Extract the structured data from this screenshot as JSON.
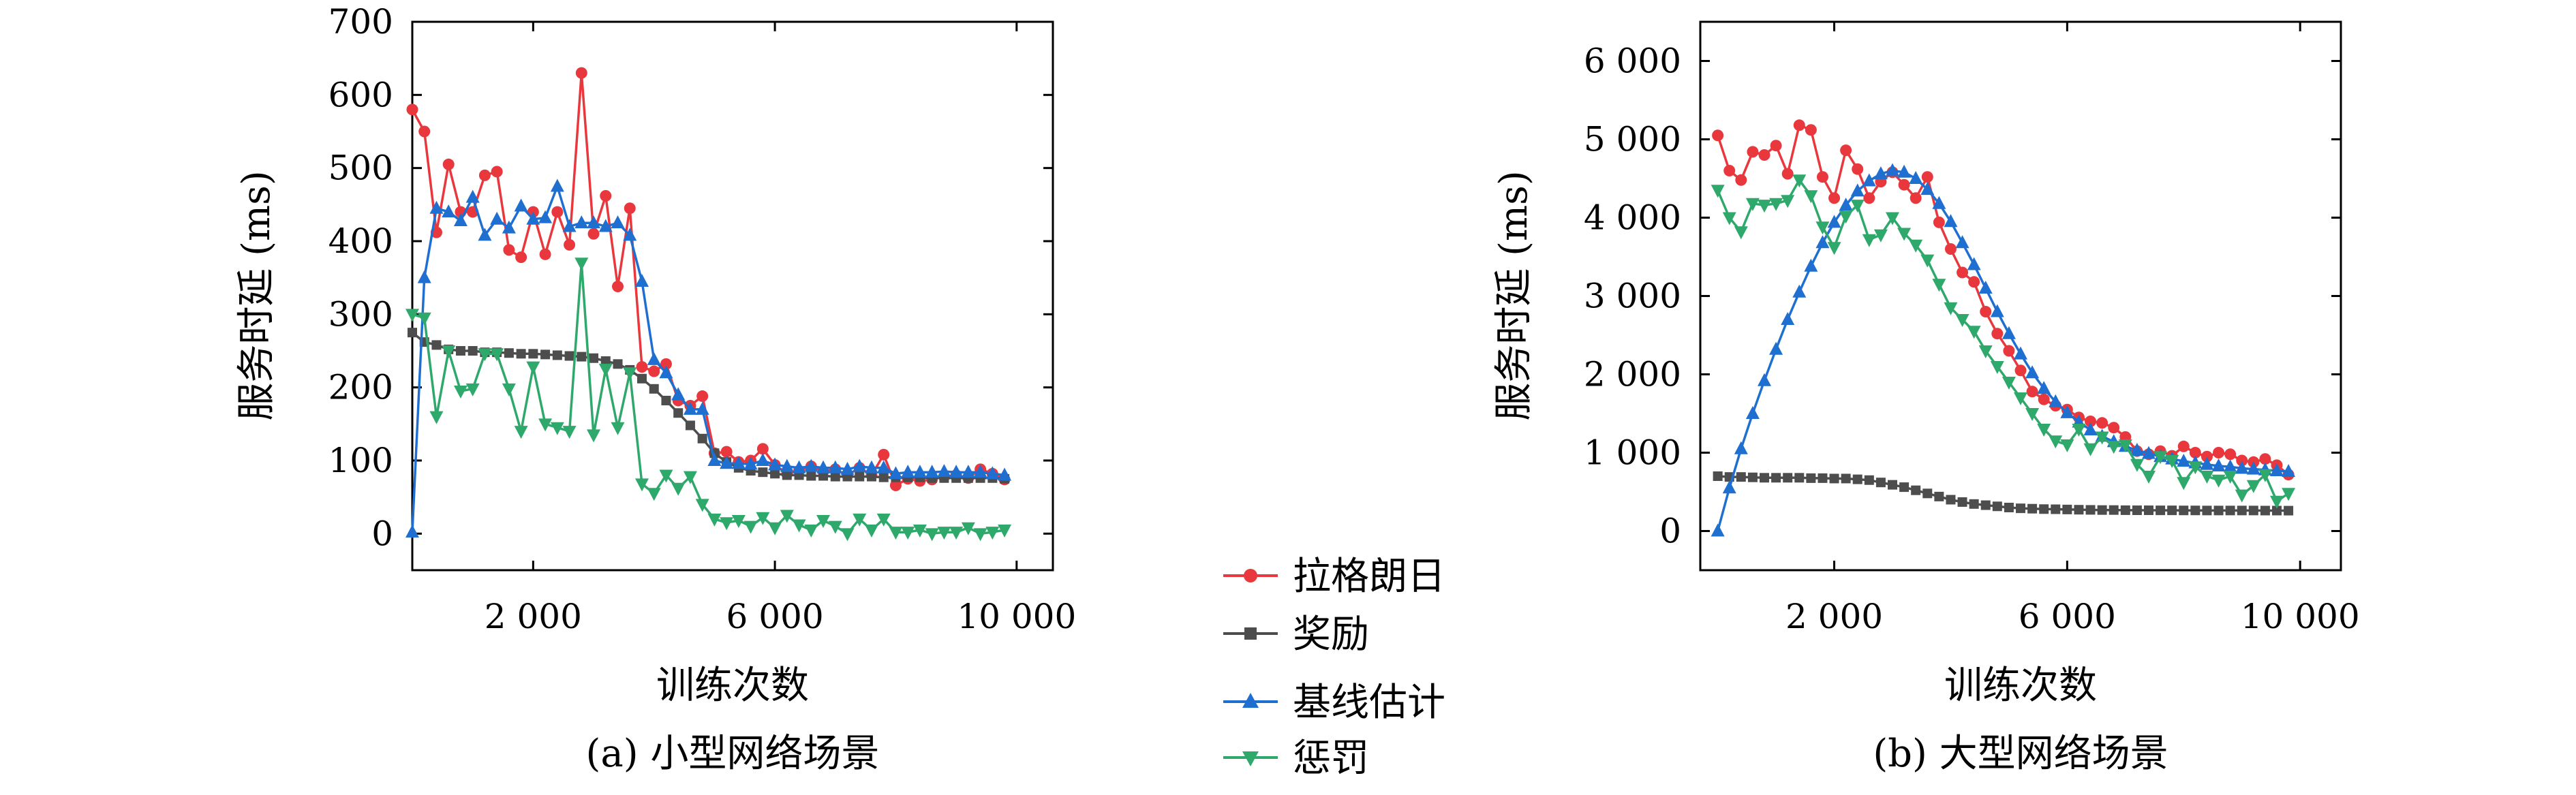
{
  "legend": [
    {
      "name": "拉格朗日",
      "color": "#e8383d",
      "marker": "circle"
    },
    {
      "name": "奖励",
      "color": "#4d4d4d",
      "marker": "square"
    },
    {
      "name": "基线估计",
      "color": "#1f6fd1",
      "marker": "triangle-up"
    },
    {
      "name": "惩罚",
      "color": "#2ea86b",
      "marker": "triangle-down"
    }
  ],
  "chart_data": [
    {
      "type": "line",
      "caption": "(a) 小型网络场景",
      "xlabel": "训练次数",
      "ylabel": "服务时延 (ms)",
      "xlim": [
        0,
        10600
      ],
      "ylim": [
        -50,
        700
      ],
      "xticks": [
        2000,
        6000,
        10000
      ],
      "xtick_labels": [
        "2 000",
        "6 000",
        "10 000"
      ],
      "yticks": [
        0,
        100,
        200,
        300,
        400,
        500,
        600,
        700
      ],
      "ytick_labels": [
        "0",
        "100",
        "200",
        "300",
        "400",
        "500",
        "600",
        "700"
      ],
      "x": [
        0,
        200,
        400,
        600,
        800,
        1000,
        1200,
        1400,
        1600,
        1800,
        2000,
        2200,
        2400,
        2600,
        2800,
        3000,
        3200,
        3400,
        3600,
        3800,
        4000,
        4200,
        4400,
        4600,
        4800,
        5000,
        5200,
        5400,
        5600,
        5800,
        6000,
        6200,
        6400,
        6600,
        6800,
        7000,
        7200,
        7400,
        7600,
        7800,
        8000,
        8200,
        8400,
        8600,
        8800,
        9000,
        9200,
        9400,
        9600,
        9800
      ],
      "series": [
        {
          "name": "拉格朗日",
          "color": "#e8383d",
          "marker": "circle",
          "values": [
            580,
            550,
            412,
            505,
            440,
            440,
            490,
            495,
            388,
            378,
            440,
            382,
            440,
            395,
            630,
            410,
            462,
            338,
            445,
            228,
            222,
            232,
            182,
            175,
            188,
            110,
            112,
            98,
            100,
            116,
            94,
            82,
            86,
            92,
            85,
            88,
            80,
            90,
            80,
            108,
            66,
            75,
            72,
            74,
            78,
            80,
            76,
            88,
            82,
            74
          ]
        },
        {
          "name": "奖励",
          "color": "#4d4d4d",
          "marker": "square",
          "values": [
            275,
            262,
            258,
            252,
            250,
            250,
            248,
            248,
            247,
            246,
            246,
            245,
            244,
            243,
            242,
            240,
            236,
            232,
            224,
            212,
            198,
            182,
            165,
            148,
            130,
            110,
            98,
            90,
            86,
            84,
            82,
            80,
            80,
            79,
            79,
            78,
            78,
            78,
            78,
            77,
            77,
            77,
            77,
            76,
            76,
            76,
            76,
            76,
            76,
            75
          ]
        },
        {
          "name": "基线估计",
          "color": "#1f6fd1",
          "marker": "triangle-up",
          "values": [
            2,
            350,
            445,
            440,
            428,
            460,
            408,
            430,
            418,
            448,
            430,
            432,
            475,
            420,
            425,
            425,
            420,
            425,
            408,
            345,
            238,
            220,
            190,
            170,
            170,
            100,
            96,
            96,
            95,
            100,
            94,
            92,
            90,
            92,
            90,
            90,
            88,
            92,
            90,
            90,
            82,
            84,
            84,
            84,
            85,
            84,
            84,
            84,
            82,
            80
          ]
        },
        {
          "name": "惩罚",
          "color": "#2ea86b",
          "marker": "triangle-down",
          "values": [
            300,
            295,
            160,
            250,
            195,
            198,
            246,
            246,
            198,
            140,
            228,
            150,
            145,
            140,
            370,
            135,
            225,
            145,
            220,
            68,
            55,
            80,
            62,
            78,
            40,
            20,
            15,
            18,
            10,
            22,
            8,
            25,
            12,
            5,
            18,
            10,
            0,
            20,
            5,
            20,
            2,
            2,
            5,
            0,
            2,
            2,
            8,
            0,
            2,
            5
          ]
        }
      ]
    },
    {
      "type": "line",
      "caption": "(b) 大型网络场景",
      "xlabel": "训练次数",
      "ylabel": "服务时延 (ms)",
      "xlim": [
        -300,
        10700
      ],
      "ylim": [
        -500,
        6500
      ],
      "xticks": [
        2000,
        6000,
        10000
      ],
      "xtick_labels": [
        "2 000",
        "6 000",
        "10 000"
      ],
      "yticks": [
        0,
        1000,
        2000,
        3000,
        4000,
        5000,
        6000
      ],
      "ytick_labels": [
        "0",
        "1 000",
        "2 000",
        "3 000",
        "4 000",
        "5 000",
        "6 000"
      ],
      "x": [
        0,
        200,
        400,
        600,
        800,
        1000,
        1200,
        1400,
        1600,
        1800,
        2000,
        2200,
        2400,
        2600,
        2800,
        3000,
        3200,
        3400,
        3600,
        3800,
        4000,
        4200,
        4400,
        4600,
        4800,
        5000,
        5200,
        5400,
        5600,
        5800,
        6000,
        6200,
        6400,
        6600,
        6800,
        7000,
        7200,
        7400,
        7600,
        7800,
        8000,
        8200,
        8400,
        8600,
        8800,
        9000,
        9200,
        9400,
        9600,
        9800
      ],
      "series": [
        {
          "name": "拉格朗日",
          "color": "#e8383d",
          "marker": "circle",
          "values": [
            5050,
            4600,
            4480,
            4840,
            4800,
            4920,
            4560,
            5180,
            5120,
            4520,
            4250,
            4860,
            4620,
            4250,
            4460,
            4580,
            4420,
            4250,
            4520,
            3940,
            3600,
            3300,
            3180,
            2800,
            2520,
            2300,
            2050,
            1780,
            1680,
            1600,
            1550,
            1450,
            1400,
            1380,
            1320,
            1200,
            1020,
            980,
            1020,
            960,
            1080,
            1000,
            950,
            1000,
            980,
            900,
            880,
            920,
            840,
            720
          ]
        },
        {
          "name": "奖励",
          "color": "#4d4d4d",
          "marker": "square",
          "values": [
            700,
            690,
            690,
            685,
            680,
            680,
            680,
            680,
            675,
            675,
            670,
            670,
            660,
            650,
            620,
            590,
            560,
            520,
            480,
            440,
            400,
            370,
            345,
            330,
            315,
            300,
            290,
            285,
            280,
            278,
            275,
            272,
            270,
            268,
            268,
            266,
            265,
            265,
            264,
            264,
            263,
            263,
            262,
            262,
            262,
            262,
            262,
            261,
            261,
            260
          ]
        },
        {
          "name": "基线估计",
          "color": "#1f6fd1",
          "marker": "triangle-up",
          "values": [
            0,
            550,
            1050,
            1500,
            1920,
            2320,
            2700,
            3050,
            3380,
            3680,
            3940,
            4160,
            4340,
            4470,
            4560,
            4600,
            4580,
            4500,
            4360,
            4180,
            3950,
            3680,
            3400,
            3100,
            2800,
            2520,
            2260,
            2020,
            1820,
            1650,
            1510,
            1390,
            1290,
            1210,
            1140,
            1080,
            1030,
            990,
            950,
            920,
            890,
            870,
            850,
            830,
            820,
            800,
            790,
            780,
            770,
            760
          ]
        },
        {
          "name": "惩罚",
          "color": "#2ea86b",
          "marker": "triangle-down",
          "values": [
            4350,
            4000,
            3820,
            4180,
            4160,
            4180,
            4220,
            4480,
            4280,
            3880,
            3620,
            4020,
            4160,
            3720,
            3780,
            4000,
            3800,
            3650,
            3460,
            3150,
            2850,
            2700,
            2550,
            2300,
            2100,
            1900,
            1700,
            1500,
            1300,
            1150,
            1100,
            1300,
            1050,
            1200,
            1080,
            1100,
            850,
            700,
            950,
            900,
            620,
            820,
            700,
            650,
            700,
            460,
            580,
            720,
            380,
            480
          ]
        }
      ]
    }
  ]
}
